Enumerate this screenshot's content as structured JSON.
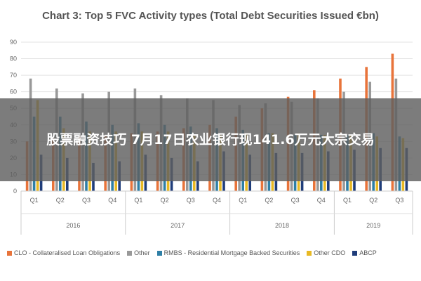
{
  "chart_data": {
    "type": "bar",
    "title": "Chart 3: Top 5 FVC Activity types (Total Debt Securities Issued €bn)",
    "xlabel": "",
    "ylabel": "",
    "ylim": [
      0,
      90
    ],
    "yticks": [
      0,
      10,
      20,
      30,
      40,
      50,
      60,
      70,
      80,
      90
    ],
    "grid": true,
    "legend_position": "bottom",
    "years": [
      {
        "label": "2016",
        "quarters": 4
      },
      {
        "label": "2017",
        "quarters": 4
      },
      {
        "label": "2018",
        "quarters": 4
      },
      {
        "label": "2019",
        "quarters": 3
      }
    ],
    "categories": [
      "Q1",
      "Q2",
      "Q3",
      "Q4",
      "Q1",
      "Q2",
      "Q3",
      "Q4",
      "Q1",
      "Q2",
      "Q3",
      "Q4",
      "Q1",
      "Q2",
      "Q3"
    ],
    "series": [
      {
        "name": "CLO - Collateralised Loan Obligations",
        "color": "#e8743b",
        "values": [
          30,
          32,
          33,
          34,
          35,
          36,
          38,
          40,
          45,
          50,
          57,
          61,
          68,
          75,
          83
        ]
      },
      {
        "name": "Other",
        "color": "#999999",
        "values": [
          68,
          62,
          59,
          60,
          62,
          58,
          56,
          55,
          52,
          53,
          54,
          56,
          60,
          66,
          68
        ]
      },
      {
        "name": "RMBS - Residential Mortgage Backed Securities",
        "color": "#2e7fa6",
        "values": [
          45,
          45,
          42,
          40,
          41,
          40,
          39,
          38,
          37,
          35,
          34,
          34,
          34,
          35,
          33
        ]
      },
      {
        "name": "Other CDO",
        "color": "#e8b923",
        "values": [
          55,
          38,
          36,
          36,
          36,
          36,
          34,
          34,
          35,
          35,
          35,
          34,
          34,
          33,
          32
        ]
      },
      {
        "name": "ABCP",
        "color": "#1f3d7a",
        "values": [
          22,
          20,
          17,
          18,
          22,
          20,
          18,
          24,
          22,
          23,
          23,
          24,
          25,
          26,
          26
        ]
      }
    ]
  },
  "overlay": {
    "text": "股票融资技巧 7月17日农业银行现141.6万元大宗交易"
  }
}
